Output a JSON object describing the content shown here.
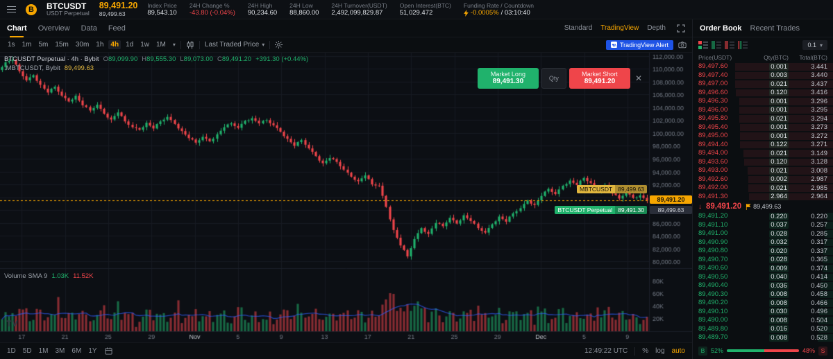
{
  "colors": {
    "accent": "#f7a600",
    "green": "#20b26c",
    "red": "#ef454a",
    "blue": "#1e53e5",
    "yellow": "#e0b63e"
  },
  "header": {
    "logo_char": "B",
    "symbol": "BTCUSDT",
    "contract_type": "USDT Perpetual",
    "last_price": "89,491.20",
    "mark_price": "89,499.63",
    "stats": [
      {
        "label": "Index Price",
        "value": "89,543.10"
      },
      {
        "label": "24H Change %",
        "value": "-43.80 (-0.04%)",
        "cls": "red"
      },
      {
        "label": "24H High",
        "value": "90,234.60"
      },
      {
        "label": "24H Low",
        "value": "88,860.00"
      },
      {
        "label": "24H Turnover(USDT)",
        "value": "2,492,099,829.87"
      },
      {
        "label": "Open Interest(BTC)",
        "value": "51,029.472"
      },
      {
        "label": "Funding Rate / Countdown",
        "value": "-0.0005%",
        "value2": "/ 03:10:40",
        "cls": "yellow",
        "icon": "lightning"
      }
    ]
  },
  "tabs": {
    "items": [
      "Chart",
      "Overview",
      "Data",
      "Feed"
    ],
    "active": "Chart",
    "right": [
      "Standard",
      "TradingView",
      "Depth"
    ],
    "highlight": "TradingView"
  },
  "toolbar": {
    "intervals": [
      "1s",
      "1m",
      "5m",
      "15m",
      "30m",
      "1h",
      "4h",
      "1d",
      "1w",
      "1M"
    ],
    "active_interval": "4h",
    "price_mode": "Last Traded Price",
    "alert_label": "TradingView Alert"
  },
  "legend": {
    "line1_title": "BTCUSDT Perpetual · 4h · Bybit",
    "o_label": "O",
    "o": "89,099.90",
    "h_label": "H",
    "h": "89,555.30",
    "l_label": "L",
    "l": "89,073.00",
    "c_label": "C",
    "c": "89,491.20",
    "change": "+391.30 (+0.44%)",
    "line2_title": ".MBTCUSDT, Bybit",
    "line2_value": "89,499.63",
    "volume_title": "Volume SMA 9",
    "volume_v1": "1.03K",
    "volume_v2": "11.52K",
    "watermark": "TV"
  },
  "trade_overlay": {
    "long_label": "Market Long",
    "long_price": "89,491.30",
    "qty_label": "Qty",
    "short_label": "Market Short",
    "short_price": "89,491.20",
    "close_glyph": "✕"
  },
  "price_axis": {
    "last_tag": "89,491.20",
    "mark_tag": "89,499.63",
    "pill_yellow_label": "MBTCUSDT",
    "pill_yellow_value": "89,499.63",
    "pill_green_label": "BTCUSDT Perpetual",
    "pill_green_value": "89,491.30"
  },
  "chart_data": {
    "type": "candlestick",
    "symbol": "BTCUSDT Perpetual",
    "interval": "4h",
    "exchange": "Bybit",
    "ylim": [
      79500,
      112500
    ],
    "grid_step": 2000,
    "current_price": 89491.2,
    "anchor_closes": [
      109800,
      111000,
      111400,
      109600,
      108200,
      109000,
      107500,
      106300,
      107200,
      105800,
      104900,
      105800,
      104300,
      103500,
      104400,
      103000,
      102100,
      103200,
      101800,
      100900,
      100500,
      101600,
      100700,
      101800,
      102500,
      101400,
      100300,
      99200,
      98500,
      99400,
      98700,
      99800,
      100900,
      101500,
      100800,
      101900,
      102300,
      101500,
      102000,
      101200,
      100200,
      99100,
      98000,
      98900,
      97600,
      96400,
      95300,
      96100,
      95500,
      94300,
      93200,
      92500,
      93400,
      92000,
      91800,
      88500,
      84900,
      82500,
      80800,
      83500,
      85200,
      84300,
      86000,
      85500,
      86800,
      85900,
      87200,
      86300,
      85200,
      84500,
      85800,
      87000,
      86200,
      87500,
      88300,
      89500,
      88800,
      90200,
      91300,
      90500,
      91800,
      92600,
      91900,
      93000,
      92200,
      90900,
      91900,
      90600,
      89800,
      90800,
      89900,
      90300,
      89491
    ],
    "time_labels": [
      "17",
      "21",
      "25",
      "29",
      "Nov",
      "5",
      "9",
      "13",
      "17",
      "21",
      "25",
      "29",
      "Dec",
      "5",
      "9"
    ],
    "month_labels": [
      "Nov",
      "Dec"
    ],
    "volume_axis_labels": [
      {
        "v": 80,
        "t": "80K"
      },
      {
        "v": 60,
        "t": "60K"
      },
      {
        "v": 40,
        "t": "40K"
      },
      {
        "v": 20,
        "t": "20K"
      }
    ],
    "volume_max_k": 95
  },
  "bottom_bar": {
    "ranges": [
      "1D",
      "5D",
      "1M",
      "3M",
      "6M",
      "1Y"
    ],
    "timestamp": "12:49:22 UTC",
    "percent_label": "%",
    "log_label": "log",
    "auto_label": "auto"
  },
  "orderbook": {
    "tabs": [
      "Order Book",
      "Recent Trades"
    ],
    "grouping": "0.1",
    "columns": [
      "Price(USDT)",
      "Qty(BTC)",
      "Total(BTC)"
    ],
    "asks": [
      {
        "p": "89,497.60",
        "q": "0.001",
        "t": "3.441"
      },
      {
        "p": "89,497.40",
        "q": "0.003",
        "t": "3.440"
      },
      {
        "p": "89,497.00",
        "q": "0.021",
        "t": "3.437"
      },
      {
        "p": "89,496.60",
        "q": "0.120",
        "t": "3.416"
      },
      {
        "p": "89,496.30",
        "q": "0.001",
        "t": "3.296"
      },
      {
        "p": "89,496.00",
        "q": "0.001",
        "t": "3.295"
      },
      {
        "p": "89,495.80",
        "q": "0.021",
        "t": "3.294"
      },
      {
        "p": "89,495.40",
        "q": "0.001",
        "t": "3.273"
      },
      {
        "p": "89,495.00",
        "q": "0.001",
        "t": "3.272"
      },
      {
        "p": "89,494.40",
        "q": "0.122",
        "t": "3.271"
      },
      {
        "p": "89,494.00",
        "q": "0.021",
        "t": "3.149"
      },
      {
        "p": "89,493.60",
        "q": "0.120",
        "t": "3.128"
      },
      {
        "p": "89,493.00",
        "q": "0.021",
        "t": "3.008"
      },
      {
        "p": "89,492.60",
        "q": "0.002",
        "t": "2.987"
      },
      {
        "p": "89,492.00",
        "q": "0.021",
        "t": "2.985"
      },
      {
        "p": "89,491.30",
        "q": "2.964",
        "t": "2.964"
      }
    ],
    "mid": {
      "arrow": "↓",
      "price": "89,491.20",
      "mark": "89,499.63"
    },
    "bids": [
      {
        "p": "89,491.20",
        "q": "0.220",
        "t": "0.220"
      },
      {
        "p": "89,491.10",
        "q": "0.037",
        "t": "0.257"
      },
      {
        "p": "89,491.00",
        "q": "0.028",
        "t": "0.285"
      },
      {
        "p": "89,490.90",
        "q": "0.032",
        "t": "0.317"
      },
      {
        "p": "89,490.80",
        "q": "0.020",
        "t": "0.337"
      },
      {
        "p": "89,490.70",
        "q": "0.028",
        "t": "0.365"
      },
      {
        "p": "89,490.60",
        "q": "0.009",
        "t": "0.374"
      },
      {
        "p": "89,490.50",
        "q": "0.040",
        "t": "0.414"
      },
      {
        "p": "89,490.40",
        "q": "0.036",
        "t": "0.450"
      },
      {
        "p": "89,490.30",
        "q": "0.008",
        "t": "0.458"
      },
      {
        "p": "89,490.20",
        "q": "0.008",
        "t": "0.466"
      },
      {
        "p": "89,490.10",
        "q": "0.030",
        "t": "0.496"
      },
      {
        "p": "89,490.00",
        "q": "0.008",
        "t": "0.504"
      },
      {
        "p": "89,489.80",
        "q": "0.016",
        "t": "0.520"
      },
      {
        "p": "89,489.70",
        "q": "0.008",
        "t": "0.528"
      }
    ],
    "ratio": {
      "buy_label": "B",
      "buy_pct": "52%",
      "sell_pct": "48%",
      "sell_label": "S"
    }
  }
}
